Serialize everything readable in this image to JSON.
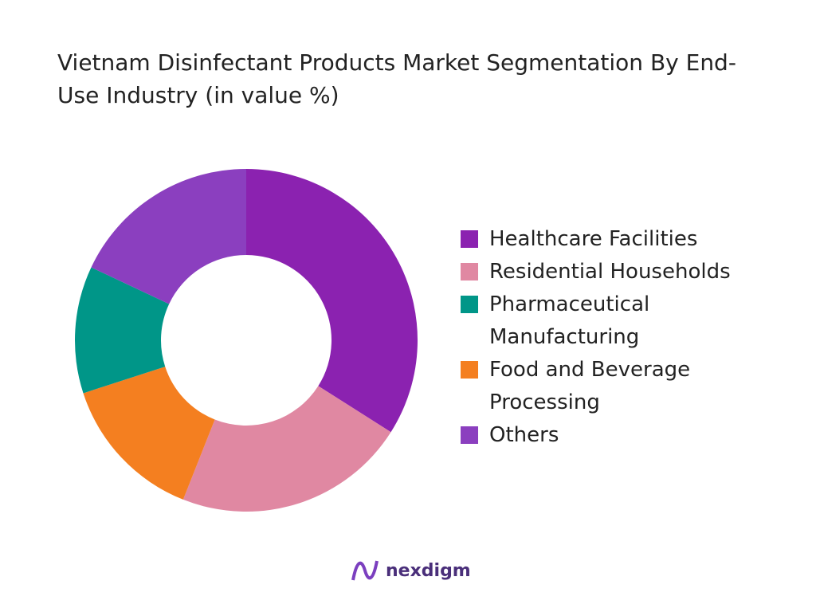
{
  "chart_data": {
    "type": "donut",
    "title": "Vietnam Disinfectant Products Market Segmentation By End-Use Industry (in value %)",
    "categories": [
      "Healthcare Facilities",
      "Residential Households",
      "Food and Beverage Processing",
      "Pharmaceutical Manufacturing",
      "Others"
    ],
    "values": [
      34,
      22,
      14,
      12,
      18
    ],
    "colors": [
      "#8b22b0",
      "#e088a2",
      "#f47f20",
      "#009688",
      "#8b3fbf"
    ],
    "legend_order": [
      0,
      1,
      3,
      2,
      4
    ],
    "legend": "right"
  },
  "logo_text": "nexdigm"
}
